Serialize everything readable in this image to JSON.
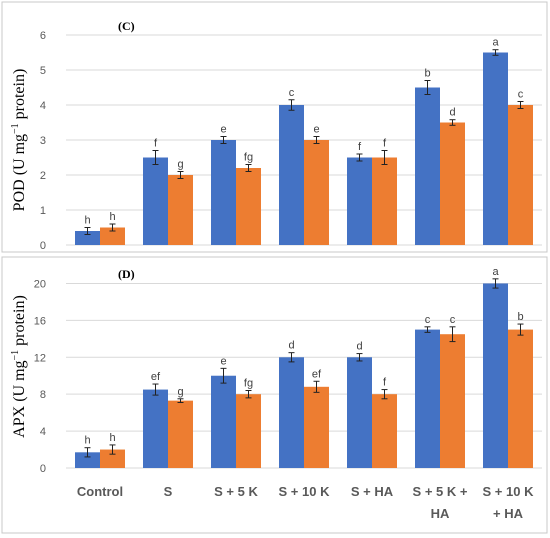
{
  "colors": {
    "series_1": "#4472c4",
    "series_2": "#ed7d31"
  },
  "chart_data": [
    {
      "type": "bar",
      "title": "(C)",
      "ylabel_main": "POD (U mg",
      "ylabel_sup": "−1",
      "ylabel_tail": " protein)",
      "ylim": [
        0,
        6
      ],
      "yticks": [
        "0",
        "1",
        "2",
        "3",
        "4",
        "5",
        "6"
      ],
      "grid": true,
      "categories": [
        "Control",
        "S",
        "S + 5 K",
        "S + 10 K",
        "S +  HA",
        "S + 5 K + HA",
        "S + 10 K + HA"
      ],
      "series": [
        {
          "values": [
            0.4,
            2.5,
            3.0,
            4.0,
            2.5,
            4.5,
            5.5
          ],
          "errors": [
            0.1,
            0.2,
            0.1,
            0.15,
            0.1,
            0.2,
            0.08
          ],
          "letters": [
            "h",
            "f",
            "e",
            "c",
            "f",
            "b",
            "a"
          ]
        },
        {
          "values": [
            0.5,
            2.0,
            2.2,
            3.0,
            2.5,
            3.5,
            4.0
          ],
          "errors": [
            0.1,
            0.1,
            0.1,
            0.1,
            0.2,
            0.08,
            0.1
          ],
          "letters": [
            "h",
            "g",
            "fg",
            "e",
            "f",
            "d",
            "c"
          ]
        }
      ]
    },
    {
      "type": "bar",
      "title": "(D)",
      "ylabel_main": "APX (U mg",
      "ylabel_sup": "−1",
      "ylabel_tail": " protein)",
      "ylim": [
        0,
        22
      ],
      "yticks": [
        "0",
        "4",
        "8",
        "12",
        "16",
        "20"
      ],
      "grid": true,
      "categories": [
        "Control",
        "S",
        "S + 5 K",
        "S + 10 K",
        "S +  HA",
        "S + 5 K + HA",
        "S + 10 K + HA"
      ],
      "category_lines": [
        [
          "Control"
        ],
        [
          "S"
        ],
        [
          "S + 5 K"
        ],
        [
          "S + 10 K"
        ],
        [
          "S +  HA"
        ],
        [
          "S + 5 K +",
          "HA"
        ],
        [
          "S + 10 K",
          "+ HA"
        ]
      ],
      "series": [
        {
          "values": [
            1.7,
            8.5,
            10.0,
            12.0,
            12.0,
            15.0,
            20.0
          ],
          "errors": [
            0.5,
            0.6,
            0.8,
            0.5,
            0.4,
            0.3,
            0.5
          ],
          "letters": [
            "h",
            "ef",
            "e",
            "d",
            "d",
            "c",
            "a"
          ]
        },
        {
          "values": [
            2.0,
            7.3,
            8.0,
            8.8,
            8.0,
            14.5,
            15.0
          ],
          "errors": [
            0.5,
            0.2,
            0.4,
            0.6,
            0.5,
            0.8,
            0.6
          ],
          "letters": [
            "h",
            "g",
            "fg",
            "ef",
            "f",
            "c",
            "b"
          ]
        }
      ]
    }
  ]
}
